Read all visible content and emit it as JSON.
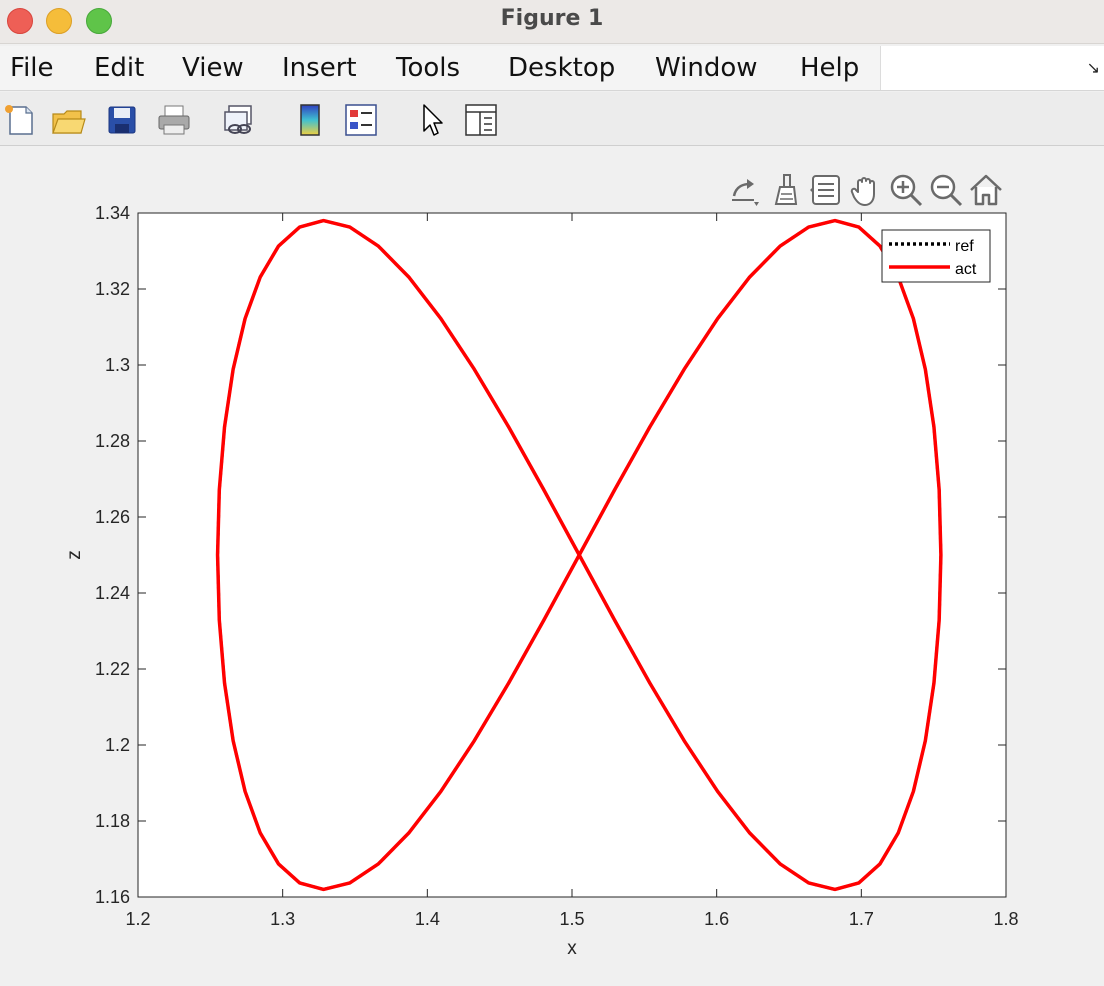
{
  "window": {
    "title": "Figure 1"
  },
  "menu": {
    "items": [
      "File",
      "Edit",
      "View",
      "Insert",
      "Tools",
      "Desktop",
      "Window",
      "Help"
    ]
  },
  "toolbar": {
    "buttons": [
      "new-figure-icon",
      "open-file-icon",
      "save-icon",
      "print-icon",
      "link-plot-icon",
      "colorbar-icon",
      "legend-icon",
      "edit-plot-icon",
      "property-inspector-icon"
    ]
  },
  "axes_toolbar": {
    "buttons": [
      "export-icon",
      "brush-icon",
      "data-tips-icon",
      "pan-icon",
      "zoom-in-icon",
      "zoom-out-icon",
      "home-icon"
    ]
  },
  "colors": {
    "act": "#ff0000",
    "ref": "#000000",
    "axes_bg": "#ffffff",
    "figure_bg": "#f0f0f0"
  },
  "chart_data": {
    "type": "line",
    "xlabel": "x",
    "ylabel": "z",
    "xlim": [
      1.2,
      1.8
    ],
    "ylim": [
      1.16,
      1.34
    ],
    "xticks": [
      "1.2",
      "1.3",
      "1.4",
      "1.5",
      "1.6",
      "1.7",
      "1.8"
    ],
    "yticks": [
      "1.16",
      "1.18",
      "1.2",
      "1.22",
      "1.24",
      "1.26",
      "1.28",
      "1.3",
      "1.32",
      "1.34"
    ],
    "grid": false,
    "legend": {
      "location": "top-right",
      "entries": [
        "ref",
        "act"
      ]
    },
    "series": [
      {
        "name": "ref",
        "style": "dotted",
        "color": "#000000",
        "curve": "lemniscate",
        "center": [
          1.505,
          1.25
        ],
        "x_amplitude": 0.25,
        "z_amplitude": 0.088,
        "samples": 64
      },
      {
        "name": "act",
        "style": "solid",
        "color": "#ff0000",
        "curve": "lemniscate",
        "center": [
          1.505,
          1.25
        ],
        "x_amplitude": 0.25,
        "z_amplitude": 0.088,
        "samples": 64
      }
    ]
  }
}
